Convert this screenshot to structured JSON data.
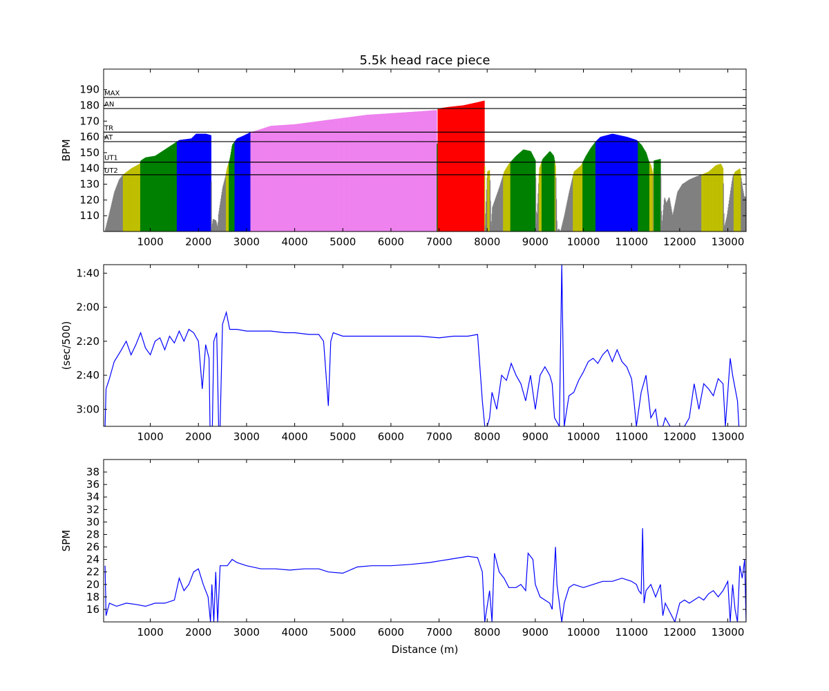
{
  "figure": {
    "title": "5.5k head race piece",
    "xlabel": "Distance (m)"
  },
  "chart_data": [
    {
      "type": "area",
      "ylabel": "BPM",
      "xlim": [
        30,
        13380
      ],
      "ylim": [
        100,
        203
      ],
      "xticks": [
        1000,
        2000,
        3000,
        4000,
        5000,
        6000,
        7000,
        8000,
        9000,
        10000,
        11000,
        12000,
        13000
      ],
      "yticks": [
        110,
        120,
        130,
        140,
        150,
        160,
        170,
        180,
        190
      ],
      "zone_lines": [
        {
          "label": "MAX",
          "value": 185
        },
        {
          "label": "AN",
          "value": 178
        },
        {
          "label": "TR",
          "value": 163
        },
        {
          "label": "AT",
          "value": 157
        },
        {
          "label": "UT1",
          "value": 144
        },
        {
          "label": "UT2",
          "value": 136
        }
      ],
      "zone_colors": {
        "none": "#808080",
        "UT2": "#bfbf00",
        "UT1": "#008000",
        "AT": "#0000ff",
        "TR": "#ee82ee",
        "AN": "#ff0000"
      },
      "hr_points": [
        [
          50,
          100
        ],
        [
          150,
          112
        ],
        [
          250,
          125
        ],
        [
          350,
          133
        ],
        [
          430,
          136
        ],
        [
          600,
          140
        ],
        [
          780,
          143
        ],
        [
          800,
          145
        ],
        [
          900,
          147
        ],
        [
          1100,
          148
        ],
        [
          1300,
          152
        ],
        [
          1500,
          156
        ],
        [
          1600,
          158
        ],
        [
          1850,
          159
        ],
        [
          1950,
          162
        ],
        [
          2150,
          162
        ],
        [
          2260,
          161
        ],
        [
          2270,
          102
        ],
        [
          2300,
          108
        ],
        [
          2360,
          107
        ],
        [
          2400,
          102
        ],
        [
          2410,
          110
        ],
        [
          2500,
          128
        ],
        [
          2560,
          135
        ],
        [
          2590,
          140
        ],
        [
          2650,
          146
        ],
        [
          2700,
          155
        ],
        [
          2800,
          159
        ],
        [
          2950,
          161
        ],
        [
          3080,
          163
        ],
        [
          3200,
          164
        ],
        [
          3500,
          167
        ],
        [
          4000,
          168
        ],
        [
          4500,
          170
        ],
        [
          5000,
          172
        ],
        [
          5500,
          174
        ],
        [
          6000,
          175
        ],
        [
          6500,
          176
        ],
        [
          6950,
          177
        ],
        [
          6960,
          134
        ],
        [
          6970,
          178
        ],
        [
          7200,
          179
        ],
        [
          7500,
          180
        ],
        [
          7800,
          182
        ],
        [
          7940,
          183
        ],
        [
          7950,
          100
        ],
        [
          8000,
          138
        ],
        [
          8050,
          139
        ],
        [
          8080,
          100
        ],
        [
          8100,
          115
        ],
        [
          8250,
          128
        ],
        [
          8300,
          133
        ],
        [
          8350,
          138
        ],
        [
          8450,
          143
        ],
        [
          8600,
          148
        ],
        [
          8750,
          152
        ],
        [
          8900,
          151
        ],
        [
          9000,
          145
        ],
        [
          9020,
          102
        ],
        [
          9080,
          140
        ],
        [
          9150,
          146
        ],
        [
          9300,
          151
        ],
        [
          9380,
          148
        ],
        [
          9420,
          141
        ],
        [
          9450,
          100
        ],
        [
          9480,
          102
        ],
        [
          9520,
          100
        ],
        [
          9600,
          110
        ],
        [
          9700,
          125
        ],
        [
          9800,
          138
        ],
        [
          9950,
          142
        ],
        [
          10050,
          148
        ],
        [
          10150,
          153
        ],
        [
          10250,
          157
        ],
        [
          10350,
          160
        ],
        [
          10600,
          162
        ],
        [
          10900,
          160
        ],
        [
          11100,
          158
        ],
        [
          11200,
          155
        ],
        [
          11300,
          150
        ],
        [
          11350,
          145
        ],
        [
          11400,
          142
        ],
        [
          11450,
          135
        ],
        [
          11460,
          145
        ],
        [
          11600,
          146
        ],
        [
          11620,
          102
        ],
        [
          11680,
          122
        ],
        [
          11720,
          118
        ],
        [
          11780,
          122
        ],
        [
          11850,
          110
        ],
        [
          11950,
          125
        ],
        [
          12050,
          130
        ],
        [
          12200,
          133
        ],
        [
          12350,
          135
        ],
        [
          12450,
          136
        ],
        [
          12600,
          138
        ],
        [
          12750,
          142
        ],
        [
          12850,
          143
        ],
        [
          12900,
          140
        ],
        [
          12920,
          102
        ],
        [
          12980,
          110
        ],
        [
          13050,
          125
        ],
        [
          13100,
          135
        ],
        [
          13150,
          138
        ],
        [
          13250,
          140
        ],
        [
          13300,
          128
        ],
        [
          13340,
          122
        ],
        [
          13380,
          122
        ]
      ]
    },
    {
      "type": "line",
      "ylabel": "(sec/500)",
      "xlim": [
        30,
        13380
      ],
      "ylim_seconds": [
        95,
        190
      ],
      "inverted_y": true,
      "color": "#0000ff",
      "yticks": [
        {
          "value": 100,
          "label": "1:40"
        },
        {
          "value": 120,
          "label": "2:00"
        },
        {
          "value": 140,
          "label": "2:20"
        },
        {
          "value": 160,
          "label": "2:40"
        },
        {
          "value": 180,
          "label": "3:00"
        }
      ],
      "xticks": [
        1000,
        2000,
        3000,
        4000,
        5000,
        6000,
        7000,
        8000,
        9000,
        10000,
        11000,
        12000,
        13000
      ],
      "pace_points": [
        [
          60,
          190
        ],
        [
          80,
          168
        ],
        [
          150,
          162
        ],
        [
          250,
          152
        ],
        [
          400,
          145
        ],
        [
          500,
          140
        ],
        [
          600,
          148
        ],
        [
          700,
          142
        ],
        [
          800,
          135
        ],
        [
          900,
          144
        ],
        [
          1000,
          148
        ],
        [
          1100,
          140
        ],
        [
          1200,
          138
        ],
        [
          1300,
          145
        ],
        [
          1400,
          137
        ],
        [
          1500,
          141
        ],
        [
          1600,
          134
        ],
        [
          1700,
          140
        ],
        [
          1800,
          133
        ],
        [
          1900,
          135
        ],
        [
          2000,
          140
        ],
        [
          2080,
          168
        ],
        [
          2150,
          142
        ],
        [
          2220,
          150
        ],
        [
          2240,
          190
        ],
        [
          2290,
          190
        ],
        [
          2320,
          140
        ],
        [
          2380,
          135
        ],
        [
          2420,
          190
        ],
        [
          2450,
          190
        ],
        [
          2500,
          130
        ],
        [
          2580,
          123
        ],
        [
          2650,
          133
        ],
        [
          2800,
          133
        ],
        [
          3000,
          134
        ],
        [
          3200,
          134
        ],
        [
          3500,
          134
        ],
        [
          3800,
          135
        ],
        [
          4000,
          135
        ],
        [
          4300,
          136
        ],
        [
          4500,
          136
        ],
        [
          4600,
          140
        ],
        [
          4700,
          178
        ],
        [
          4750,
          140
        ],
        [
          4800,
          135
        ],
        [
          5000,
          137
        ],
        [
          5300,
          137
        ],
        [
          5600,
          137
        ],
        [
          6000,
          137
        ],
        [
          6300,
          137
        ],
        [
          6600,
          137
        ],
        [
          7000,
          138
        ],
        [
          7300,
          137
        ],
        [
          7600,
          137
        ],
        [
          7800,
          136
        ],
        [
          7900,
          175
        ],
        [
          7950,
          190
        ],
        [
          8000,
          190
        ],
        [
          8050,
          185
        ],
        [
          8100,
          170
        ],
        [
          8200,
          180
        ],
        [
          8300,
          160
        ],
        [
          8400,
          163
        ],
        [
          8500,
          153
        ],
        [
          8600,
          160
        ],
        [
          8700,
          165
        ],
        [
          8800,
          175
        ],
        [
          8900,
          160
        ],
        [
          9000,
          180
        ],
        [
          9100,
          160
        ],
        [
          9200,
          155
        ],
        [
          9300,
          160
        ],
        [
          9350,
          165
        ],
        [
          9400,
          185
        ],
        [
          9500,
          190
        ],
        [
          9550,
          95
        ],
        [
          9600,
          190
        ],
        [
          9700,
          172
        ],
        [
          9800,
          170
        ],
        [
          9900,
          163
        ],
        [
          10000,
          158
        ],
        [
          10100,
          152
        ],
        [
          10200,
          150
        ],
        [
          10300,
          153
        ],
        [
          10400,
          148
        ],
        [
          10500,
          145
        ],
        [
          10600,
          152
        ],
        [
          10700,
          145
        ],
        [
          10800,
          152
        ],
        [
          10900,
          155
        ],
        [
          11000,
          162
        ],
        [
          11050,
          175
        ],
        [
          11100,
          190
        ],
        [
          11200,
          170
        ],
        [
          11300,
          160
        ],
        [
          11400,
          185
        ],
        [
          11500,
          180
        ],
        [
          11550,
          190
        ],
        [
          11650,
          190
        ],
        [
          11700,
          185
        ],
        [
          11800,
          190
        ],
        [
          11900,
          190
        ],
        [
          12000,
          190
        ],
        [
          12100,
          190
        ],
        [
          12200,
          185
        ],
        [
          12300,
          165
        ],
        [
          12400,
          180
        ],
        [
          12500,
          165
        ],
        [
          12600,
          168
        ],
        [
          12700,
          172
        ],
        [
          12800,
          162
        ],
        [
          12900,
          165
        ],
        [
          12950,
          190
        ],
        [
          13050,
          150
        ],
        [
          13100,
          160
        ],
        [
          13200,
          175
        ],
        [
          13230,
          190
        ]
      ]
    },
    {
      "type": "line",
      "ylabel": "SPM",
      "xlabel": "Distance (m)",
      "xlim": [
        30,
        13380
      ],
      "ylim": [
        14,
        40
      ],
      "color": "#0000ff",
      "yticks": [
        16,
        18,
        20,
        22,
        24,
        26,
        28,
        30,
        32,
        34,
        36,
        38
      ],
      "xticks": [
        1000,
        2000,
        3000,
        4000,
        5000,
        6000,
        7000,
        8000,
        9000,
        10000,
        11000,
        12000,
        13000
      ],
      "spm_points": [
        [
          60,
          23
        ],
        [
          80,
          15
        ],
        [
          150,
          17
        ],
        [
          300,
          16.5
        ],
        [
          500,
          17
        ],
        [
          700,
          16.8
        ],
        [
          900,
          16.5
        ],
        [
          1100,
          17
        ],
        [
          1300,
          17
        ],
        [
          1500,
          17.5
        ],
        [
          1600,
          21
        ],
        [
          1700,
          19
        ],
        [
          1800,
          20
        ],
        [
          1900,
          22
        ],
        [
          2000,
          22.5
        ],
        [
          2100,
          20
        ],
        [
          2200,
          18
        ],
        [
          2250,
          14
        ],
        [
          2280,
          20
        ],
        [
          2320,
          14
        ],
        [
          2360,
          22
        ],
        [
          2400,
          14
        ],
        [
          2450,
          23
        ],
        [
          2600,
          23
        ],
        [
          2700,
          24
        ],
        [
          2800,
          23.5
        ],
        [
          3000,
          23
        ],
        [
          3300,
          22.5
        ],
        [
          3600,
          22.5
        ],
        [
          3900,
          22.3
        ],
        [
          4200,
          22.5
        ],
        [
          4500,
          22.5
        ],
        [
          4700,
          22
        ],
        [
          5000,
          21.8
        ],
        [
          5300,
          22.8
        ],
        [
          5600,
          23
        ],
        [
          6000,
          23
        ],
        [
          6400,
          23.2
        ],
        [
          6800,
          23.5
        ],
        [
          7200,
          24
        ],
        [
          7600,
          24.5
        ],
        [
          7800,
          24.3
        ],
        [
          7900,
          22
        ],
        [
          7950,
          14
        ],
        [
          8050,
          19
        ],
        [
          8100,
          14
        ],
        [
          8150,
          25
        ],
        [
          8250,
          22
        ],
        [
          8350,
          21
        ],
        [
          8450,
          19.5
        ],
        [
          8600,
          19.5
        ],
        [
          8700,
          20
        ],
        [
          8800,
          19
        ],
        [
          8850,
          25
        ],
        [
          8950,
          24
        ],
        [
          9000,
          20
        ],
        [
          9100,
          18
        ],
        [
          9200,
          17.5
        ],
        [
          9300,
          17
        ],
        [
          9350,
          16
        ],
        [
          9420,
          26
        ],
        [
          9450,
          20
        ],
        [
          9500,
          17
        ],
        [
          9550,
          14
        ],
        [
          9600,
          17
        ],
        [
          9700,
          19.5
        ],
        [
          9800,
          20
        ],
        [
          10000,
          19.5
        ],
        [
          10200,
          20
        ],
        [
          10400,
          20.5
        ],
        [
          10600,
          20.5
        ],
        [
          10800,
          21
        ],
        [
          11000,
          20.5
        ],
        [
          11100,
          20
        ],
        [
          11150,
          19
        ],
        [
          11200,
          18.5
        ],
        [
          11230,
          29
        ],
        [
          11260,
          17
        ],
        [
          11300,
          19
        ],
        [
          11400,
          20
        ],
        [
          11500,
          18
        ],
        [
          11600,
          20
        ],
        [
          11650,
          15
        ],
        [
          11700,
          17
        ],
        [
          11800,
          15.5
        ],
        [
          11900,
          14
        ],
        [
          12000,
          17
        ],
        [
          12100,
          17.5
        ],
        [
          12200,
          17
        ],
        [
          12300,
          17.5
        ],
        [
          12400,
          18
        ],
        [
          12500,
          17.5
        ],
        [
          12600,
          18.5
        ],
        [
          12700,
          19
        ],
        [
          12800,
          18
        ],
        [
          12900,
          19
        ],
        [
          13000,
          20.5
        ],
        [
          13050,
          14
        ],
        [
          13100,
          20
        ],
        [
          13150,
          16
        ],
        [
          13200,
          14
        ],
        [
          13250,
          23
        ],
        [
          13300,
          21
        ],
        [
          13350,
          24
        ],
        [
          13380,
          14
        ]
      ]
    }
  ]
}
